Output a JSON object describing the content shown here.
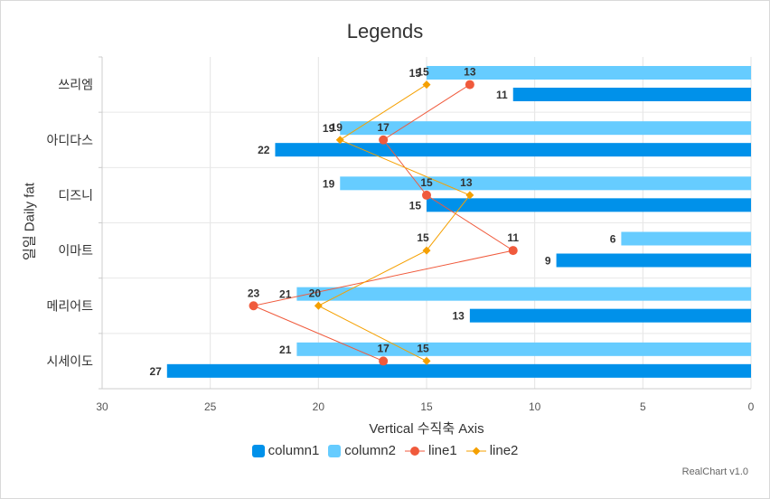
{
  "chart_data": {
    "type": "bar",
    "title": "Legends",
    "xlabel": "Vertical 수직축 Axis",
    "ylabel": "일일 Daily fat",
    "categories": [
      "시세이도",
      "메리어트",
      "이마트",
      "디즈니",
      "아디다스",
      "쓰리엠"
    ],
    "xlim": [
      0,
      30
    ],
    "x_reversed": true,
    "ticks": [
      "30",
      "25",
      "20",
      "15",
      "10",
      "5",
      "0"
    ],
    "grid": true,
    "legend_position": "bottom",
    "series": [
      {
        "name": "column1",
        "type": "bar",
        "color": "#0091ea",
        "values": [
          27,
          13,
          9,
          15,
          22,
          11
        ]
      },
      {
        "name": "column2",
        "type": "bar",
        "color": "#66ccff",
        "values": [
          21,
          21,
          6,
          19,
          19,
          15
        ]
      },
      {
        "name": "line1",
        "type": "line",
        "color": "#f05a3c",
        "marker": "circle",
        "values": [
          17,
          23,
          11,
          15,
          17,
          13
        ]
      },
      {
        "name": "line2",
        "type": "line",
        "color": "#f5a000",
        "marker": "diamond",
        "values": [
          15,
          20,
          15,
          13,
          19,
          15
        ]
      }
    ]
  },
  "credits": "RealChart v1.0"
}
